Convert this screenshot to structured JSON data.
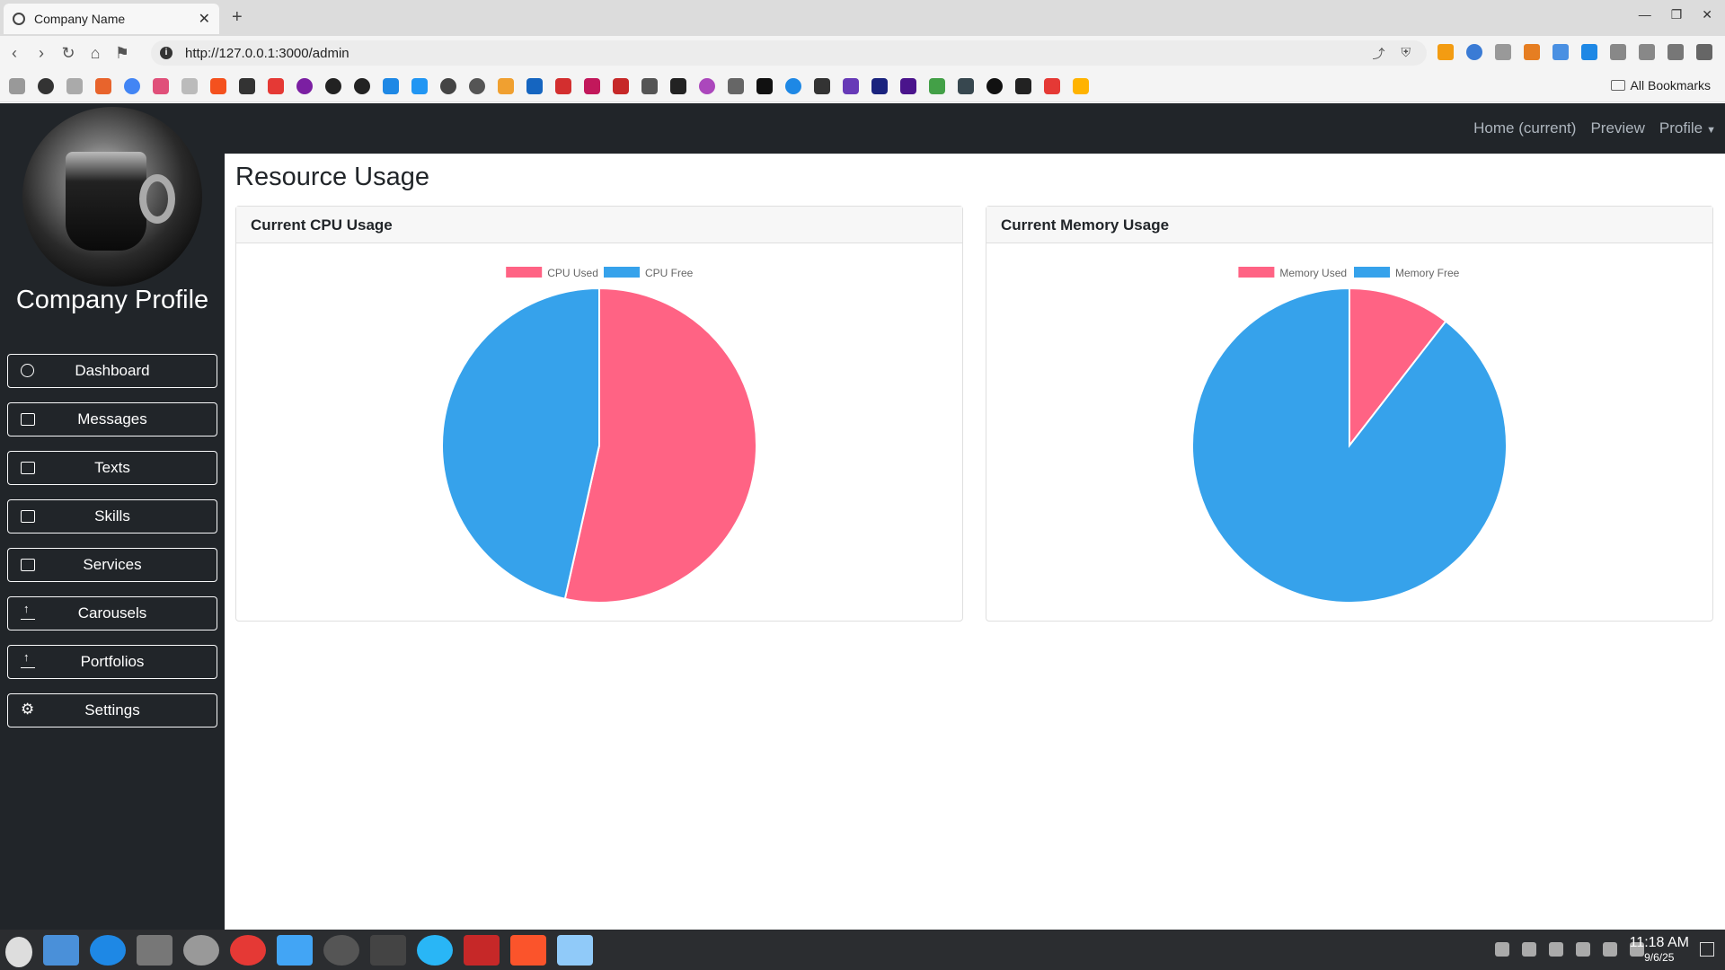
{
  "browser": {
    "tab_title": "Company Name",
    "url": "http://127.0.0.1:3000/admin",
    "all_bookmarks": "All Bookmarks"
  },
  "sidebar": {
    "company": "Company Profile",
    "items": [
      {
        "label": "Dashboard",
        "icon": "dashboard-icon"
      },
      {
        "label": "Messages",
        "icon": "folder-icon"
      },
      {
        "label": "Texts",
        "icon": "folder-icon"
      },
      {
        "label": "Skills",
        "icon": "folder-icon"
      },
      {
        "label": "Services",
        "icon": "folder-icon"
      },
      {
        "label": "Carousels",
        "icon": "upload-icon"
      },
      {
        "label": "Portfolios",
        "icon": "upload-icon"
      },
      {
        "label": "Settings",
        "icon": "gear-icon"
      }
    ]
  },
  "topnav": {
    "home": "Home (current)",
    "preview": "Preview",
    "profile": "Profile"
  },
  "page": {
    "title": "Resource Usage"
  },
  "colors": {
    "used": "#ff6384",
    "free": "#36a2eb"
  },
  "chart_data": [
    {
      "type": "pie",
      "title": "Current CPU Usage",
      "categories": [
        "CPU Used",
        "CPU Free"
      ],
      "values": [
        53.5,
        46.5
      ],
      "legend": "top"
    },
    {
      "type": "pie",
      "title": "Current Memory Usage",
      "categories": [
        "Memory Used",
        "Memory Free"
      ],
      "values": [
        10.5,
        89.5
      ],
      "legend": "top"
    }
  ],
  "taskbar": {
    "time": "11:18 AM",
    "date": "9/6/25"
  }
}
